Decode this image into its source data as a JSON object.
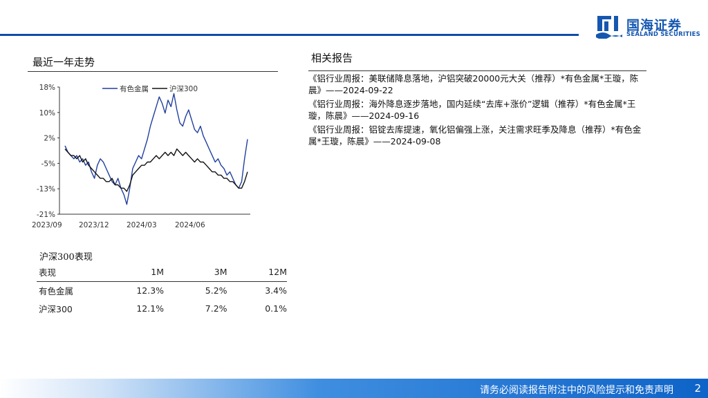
{
  "header": {
    "logo_cn": "国海证券",
    "logo_en": "SEALAND SECURITIES",
    "brand_color": "#1557b0",
    "logo_icon": "sealand-logo-icon"
  },
  "trend_section": {
    "title": "最近一年走势"
  },
  "chart_data": {
    "type": "line",
    "series": [
      {
        "name": "有色金属",
        "color": "#1f3f9e",
        "values": [
          0,
          -2,
          -3,
          -4,
          -3,
          -5,
          -4,
          -6,
          -5,
          -8,
          -10,
          -6,
          -4,
          -5,
          -7,
          -9,
          -11,
          -12,
          -10,
          -13,
          -15,
          -18,
          -13,
          -7,
          -5,
          -3,
          -4,
          -1,
          2,
          6,
          9,
          12,
          15,
          13,
          10,
          14,
          12,
          16,
          11,
          7,
          6,
          9,
          11,
          8,
          5,
          4,
          6,
          3,
          1,
          -1,
          -3,
          -5,
          -4,
          -6,
          -7,
          -9,
          -8,
          -10,
          -12,
          -13,
          -11,
          -4,
          2
        ]
      },
      {
        "name": "沪深300",
        "color": "#111111",
        "values": [
          -1,
          -2,
          -3,
          -3,
          -4,
          -3,
          -5,
          -4,
          -6,
          -7,
          -8,
          -9,
          -10,
          -10,
          -11,
          -11,
          -10,
          -12,
          -12,
          -13,
          -13,
          -14,
          -12,
          -9,
          -8,
          -7,
          -6,
          -6,
          -5,
          -5,
          -4,
          -3,
          -4,
          -3,
          -2,
          -3,
          -2,
          -3,
          -1,
          -2,
          -3,
          -2,
          -3,
          -4,
          -5,
          -4,
          -5,
          -5,
          -6,
          -7,
          -8,
          -8,
          -9,
          -9,
          -10,
          -10,
          -11,
          -11,
          -12,
          -13,
          -13,
          -11,
          -8
        ]
      }
    ],
    "x_ticks": [
      "2023/09",
      "2023/12",
      "2024/03",
      "2024/06"
    ],
    "y_ticks": [
      "18%",
      "10%",
      "2%",
      "-5%",
      "-13%",
      "-21%"
    ],
    "ylim": [
      -21,
      18
    ],
    "legend_position": "top",
    "grid": false
  },
  "perf_section": {
    "title": "沪深300表现",
    "header": [
      "表现",
      "1M",
      "3M",
      "12M"
    ],
    "rows": [
      [
        "有色金属",
        "12.3%",
        "5.2%",
        "3.4%"
      ],
      [
        "沪深300",
        "12.1%",
        "7.2%",
        "0.1%"
      ]
    ]
  },
  "reports_section": {
    "title": "相关报告",
    "items": [
      "《铝行业周报：美联储降息落地，沪铝突破20000元大关（推荐）*有色金属*王璇，陈晨》——2024-09-22",
      "《铝行业周报：海外降息逐步落地，国内延续“去库+涨价”逻辑（推荐）*有色金属*王璇，陈晨》——2024-09-16",
      "《铝行业周报：铝锭去库提速，氧化铝偏强上涨，关注需求旺季及降息（推荐）*有色金属*王璇，陈晨》——2024-09-08"
    ]
  },
  "footer": {
    "disclaimer": "请务必阅读报告附注中的风险提示和免责声明",
    "page": "2"
  }
}
